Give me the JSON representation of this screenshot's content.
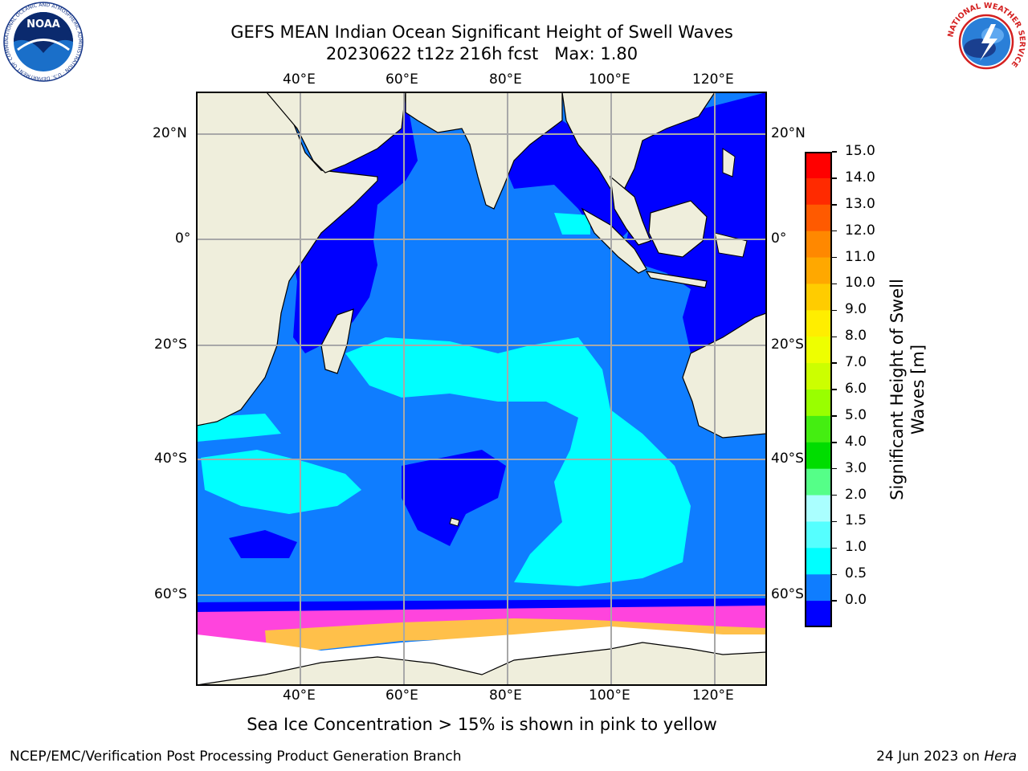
{
  "title": {
    "line1": "GEFS MEAN Indian Ocean Significant Height of Swell Waves",
    "line2": "20230622 t12z 216h fcst   Max: 1.80"
  },
  "map": {
    "lon_ticks_top": [
      "40°E",
      "60°E",
      "80°E",
      "100°E",
      "120°E"
    ],
    "lon_ticks_bottom": [
      "40°E",
      "60°E",
      "80°E",
      "100°E",
      "120°E"
    ],
    "lat_ticks_left": [
      "20°N",
      "0°",
      "20°S",
      "40°S",
      "60°S"
    ],
    "lat_ticks_right": [
      "20°N",
      "0°",
      "20°S",
      "40°S",
      "60°S"
    ],
    "colors": {
      "land": "#efeedc",
      "swell_0_0.5": "#0000ff",
      "swell_0.5_1": "#0f7dff",
      "swell_1_1.5": "#00ffff",
      "ice_pink": "#ff44dd",
      "ice_yellow": "#ffc04a",
      "grid": "#a8a8a8"
    }
  },
  "colorbar": {
    "label": "Significant Height of Swell Waves [m]",
    "ticks": [
      "15.0",
      "14.0",
      "13.0",
      "12.0",
      "11.0",
      "10.0",
      "9.0",
      "8.0",
      "7.0",
      "6.0",
      "5.0",
      "4.0",
      "3.0",
      "2.0",
      "1.5",
      "1.0",
      "0.5",
      "0.0"
    ],
    "segment_colors": [
      "#ff0000",
      "#ff2a00",
      "#ff5a00",
      "#ff8800",
      "#ffa800",
      "#ffcc00",
      "#ffee00",
      "#eeff00",
      "#ccff00",
      "#99ff00",
      "#44ee11",
      "#00dd00",
      "#55ff88",
      "#aaffff",
      "#55ffff",
      "#00ffff",
      "#0f7dff",
      "#0000ff"
    ]
  },
  "caption": "Sea Ice Concentration > 15% is shown in pink to yellow",
  "footer": {
    "left": "NCEP/EMC/Verification Post Processing Product Generation Branch",
    "right_prefix": "24 Jun 2023 on ",
    "right_host": "Hera"
  },
  "logos": {
    "noaa_label": "NOAA",
    "noaa_ring": "NATIONAL OCEANIC AND ATMOSPHERIC ADMINISTRATION · U.S. DEPARTMENT OF COMMERCE",
    "nws_ring": "NATIONAL WEATHER SERVICE"
  }
}
